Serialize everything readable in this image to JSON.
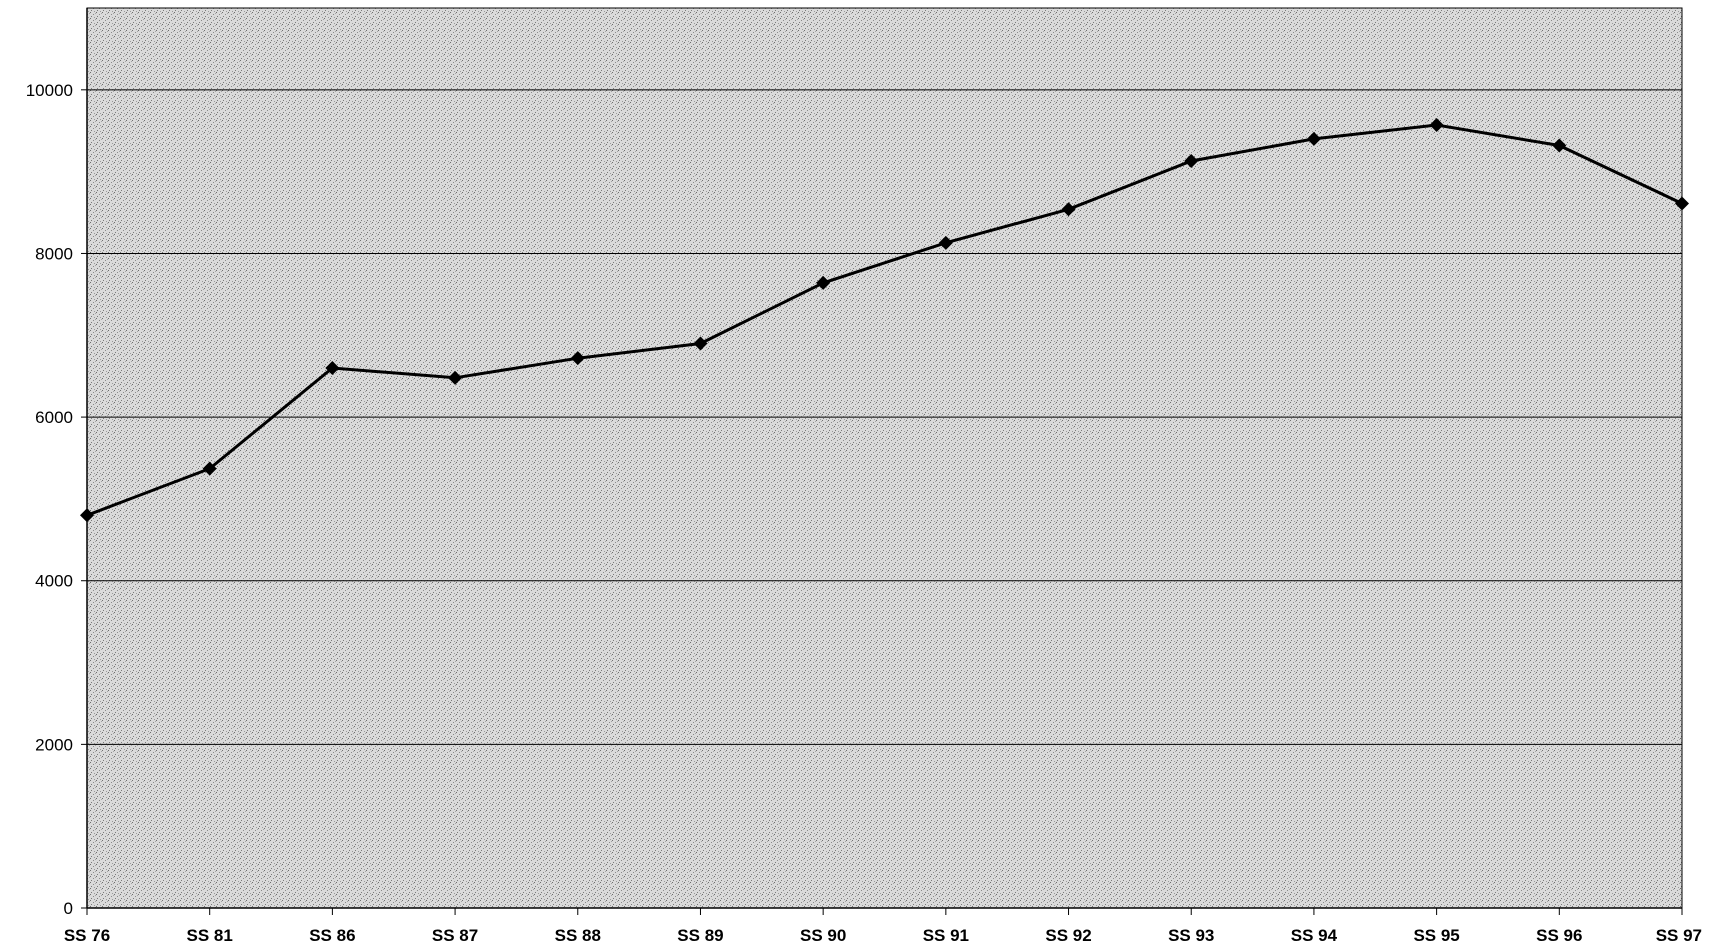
{
  "chart_data": {
    "type": "line",
    "title": "",
    "xlabel": "",
    "ylabel": "",
    "categories": [
      "SS 76",
      "SS 81",
      "SS 86",
      "SS 87",
      "SS 88",
      "SS 89",
      "SS 90",
      "SS 91",
      "SS 92",
      "SS 93",
      "SS 94",
      "SS 95",
      "SS 96",
      "SS 97"
    ],
    "series": [
      {
        "values": [
          4800,
          5370,
          6600,
          6480,
          6720,
          6900,
          7640,
          8130,
          8540,
          9130,
          9400,
          9570,
          9320,
          8610
        ],
        "color": "#000000",
        "marker": "diamond"
      }
    ],
    "yticks": [
      "0",
      "2000",
      "4000",
      "6000",
      "8000",
      "10000"
    ],
    "ylim": [
      0,
      11000
    ],
    "grid": true,
    "legend": "none",
    "plot_background": "#c8c8c8"
  }
}
